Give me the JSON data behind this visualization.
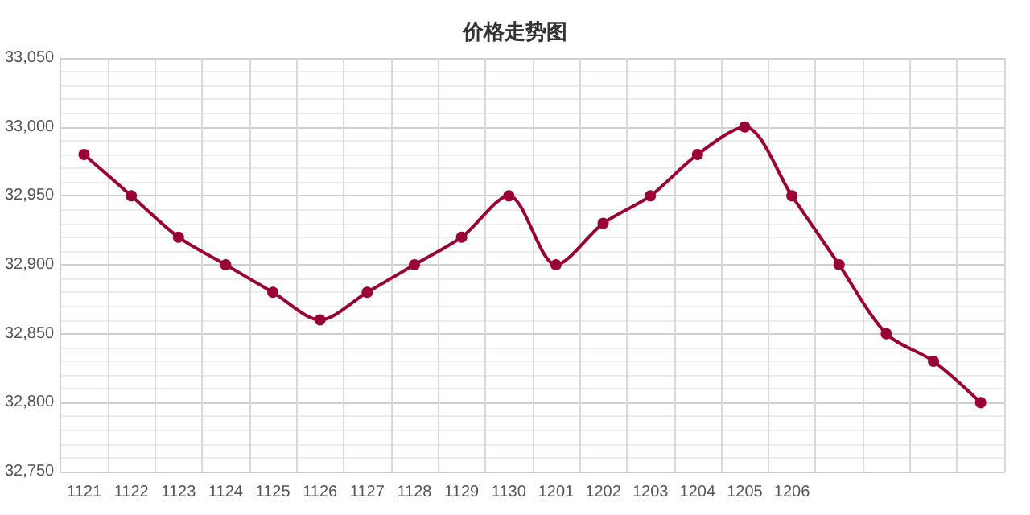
{
  "chart_data": {
    "type": "line",
    "title": "价格走势图",
    "categories": [
      "1121",
      "1122",
      "1123",
      "1124",
      "1125",
      "1126",
      "1127",
      "1128",
      "1129",
      "1130",
      "1201",
      "1202",
      "1203",
      "1204",
      "1205",
      "1206",
      null,
      null,
      null,
      null
    ],
    "series": [
      {
        "color": "#990033",
        "values": [
          32980,
          32950,
          32920,
          32900,
          32880,
          32860,
          32880,
          32900,
          32920,
          32950,
          32900,
          32930,
          32950,
          32980,
          33000,
          32950,
          32900,
          32850,
          32830,
          32800
        ]
      }
    ],
    "ylim": [
      32750,
      33050
    ],
    "yticks": [
      {
        "value": 32750,
        "label": "32,750"
      },
      {
        "value": 32800,
        "label": "32,800"
      },
      {
        "value": 32850,
        "label": "32,850"
      },
      {
        "value": 32900,
        "label": "32,900"
      },
      {
        "value": 32950,
        "label": "32,950"
      },
      {
        "value": 33000,
        "label": "33,000"
      },
      {
        "value": 33050,
        "label": "33,050"
      }
    ],
    "grid": true,
    "marker": "circle",
    "line_style": "solid"
  }
}
